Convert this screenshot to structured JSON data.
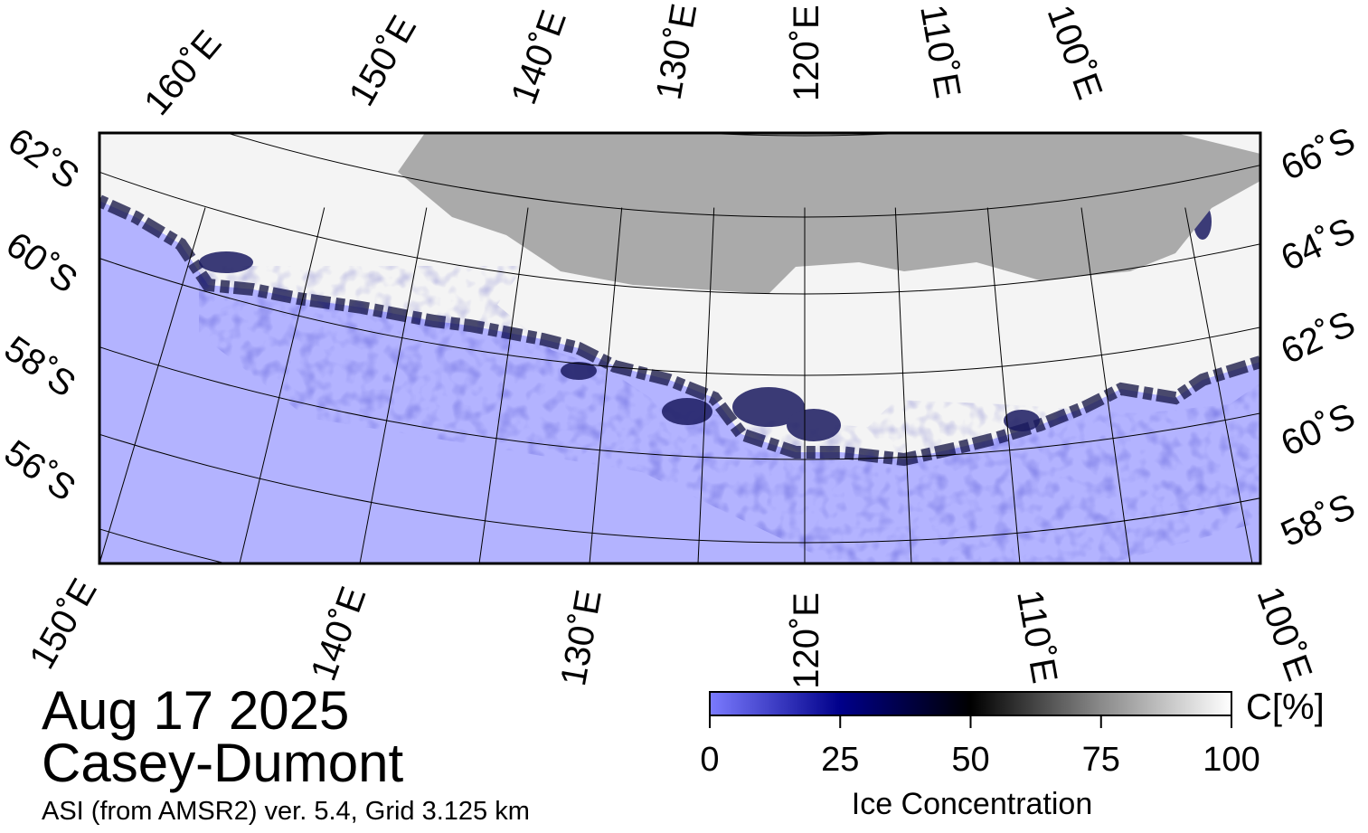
{
  "map": {
    "top_lon_labels": [
      "160˚E",
      "150˚E",
      "140˚E",
      "130˚E",
      "120˚E",
      "110˚E",
      "100˚E"
    ],
    "bottom_lon_labels": [
      "150˚E",
      "140˚E",
      "130˚E",
      "120˚E",
      "110˚E",
      "100˚E"
    ],
    "left_lat_labels": [
      "62˚S",
      "60˚S",
      "58˚S",
      "56˚S"
    ],
    "right_lat_labels": [
      "66˚S",
      "64˚S",
      "62˚S",
      "60˚S",
      "58˚S"
    ]
  },
  "caption": {
    "date": "Aug 17 2025",
    "region": "Casey-Dumont",
    "source": "ASI (from AMSR2) ver. 5.4,  Grid 3.125 km"
  },
  "colorbar": {
    "label": "Ice Concentration",
    "unit": "C[%]",
    "lim": [
      0,
      100
    ],
    "ticks": [
      0,
      25,
      50,
      75,
      100
    ]
  }
}
